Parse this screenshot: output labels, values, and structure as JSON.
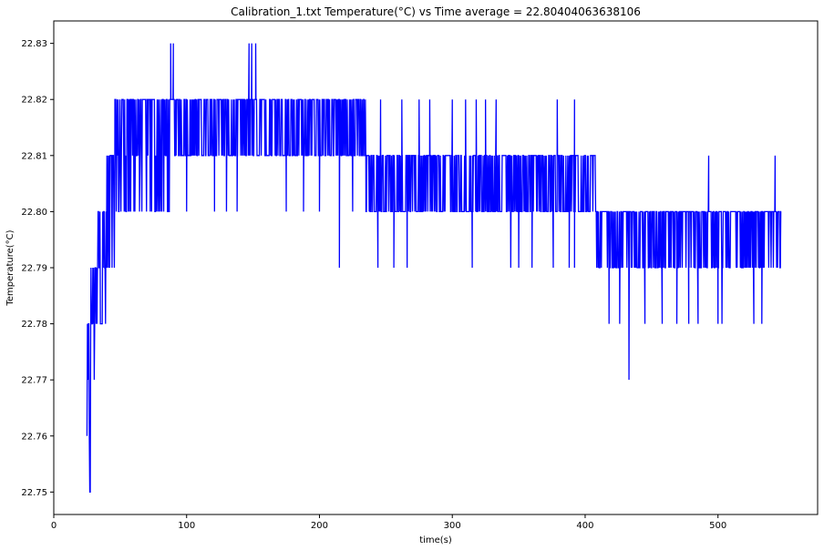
{
  "chart_data": {
    "type": "line",
    "title": "Calibration_1.txt  Temperature(°C) vs Time  average = 22.80404063638106",
    "xlabel": "time(s)",
    "ylabel": "Temperature(°C)",
    "xlim": [
      0,
      575
    ],
    "ylim": [
      22.746,
      22.834
    ],
    "x_ticks": [
      0,
      100,
      200,
      300,
      400,
      500
    ],
    "y_ticks": [
      22.75,
      22.76,
      22.77,
      22.78,
      22.79,
      22.8,
      22.81,
      22.82,
      22.83
    ],
    "x_tick_labels": [
      "0",
      "100",
      "200",
      "300",
      "400",
      "500"
    ],
    "y_tick_labels": [
      "22.75",
      "22.76",
      "22.77",
      "22.78",
      "22.79",
      "22.80",
      "22.81",
      "22.82",
      "22.83"
    ],
    "grid": false,
    "legend": "none",
    "series_color": "#0000ff",
    "x_range": [
      25,
      548
    ],
    "segments": [
      {
        "x": [
          25,
          28
        ],
        "levels": [
          22.75,
          22.76,
          22.77,
          22.78
        ],
        "dense": 0.9
      },
      {
        "x": [
          28,
          33
        ],
        "levels": [
          22.77,
          22.78,
          22.79
        ],
        "dense": 0.9
      },
      {
        "x": [
          33,
          40
        ],
        "levels": [
          22.78,
          22.79,
          22.8
        ],
        "dense": 0.8
      },
      {
        "x": [
          40,
          46
        ],
        "levels": [
          22.79,
          22.8,
          22.81
        ],
        "dense": 0.8
      },
      {
        "x": [
          46,
          90
        ],
        "levels": [
          22.8,
          22.81,
          22.82
        ],
        "dense": 0.7,
        "spikes": [
          [
            88,
            22.83
          ],
          [
            90,
            22.83
          ]
        ]
      },
      {
        "x": [
          90,
          235
        ],
        "levels": [
          22.81,
          22.82
        ],
        "dense": 0.9,
        "dips": [
          [
            100,
            22.8
          ],
          [
            121,
            22.8
          ],
          [
            130,
            22.8
          ],
          [
            138,
            22.8
          ],
          [
            175,
            22.8
          ],
          [
            188,
            22.8
          ],
          [
            200,
            22.8
          ],
          [
            215,
            22.79
          ],
          [
            225,
            22.8
          ]
        ],
        "spikes": [
          [
            147,
            22.83
          ],
          [
            149,
            22.83
          ],
          [
            152,
            22.83
          ]
        ]
      },
      {
        "x": [
          235,
          408
        ],
        "levels": [
          22.8,
          22.81
        ],
        "dense": 0.9,
        "spikes": [
          [
            246,
            22.82
          ],
          [
            262,
            22.82
          ],
          [
            275,
            22.82
          ],
          [
            283,
            22.82
          ],
          [
            300,
            22.82
          ],
          [
            310,
            22.82
          ],
          [
            318,
            22.82
          ],
          [
            325,
            22.82
          ],
          [
            333,
            22.82
          ],
          [
            379,
            22.82
          ],
          [
            392,
            22.82
          ]
        ],
        "dips": [
          [
            244,
            22.79
          ],
          [
            256,
            22.79
          ],
          [
            266,
            22.79
          ],
          [
            315,
            22.79
          ],
          [
            344,
            22.79
          ],
          [
            350,
            22.79
          ],
          [
            360,
            22.79
          ],
          [
            376,
            22.79
          ],
          [
            388,
            22.79
          ],
          [
            392,
            22.79
          ]
        ]
      },
      {
        "x": [
          408,
          548
        ],
        "levels": [
          22.79,
          22.8
        ],
        "dense": 0.9,
        "spikes": [
          [
            493,
            22.81
          ],
          [
            543,
            22.81
          ]
        ],
        "dips": [
          [
            418,
            22.78
          ],
          [
            426,
            22.78
          ],
          [
            433,
            22.77
          ],
          [
            445,
            22.78
          ],
          [
            458,
            22.78
          ],
          [
            469,
            22.78
          ],
          [
            478,
            22.78
          ],
          [
            485,
            22.78
          ],
          [
            500,
            22.78
          ],
          [
            503,
            22.78
          ],
          [
            527,
            22.78
          ],
          [
            533,
            22.78
          ]
        ]
      }
    ]
  }
}
